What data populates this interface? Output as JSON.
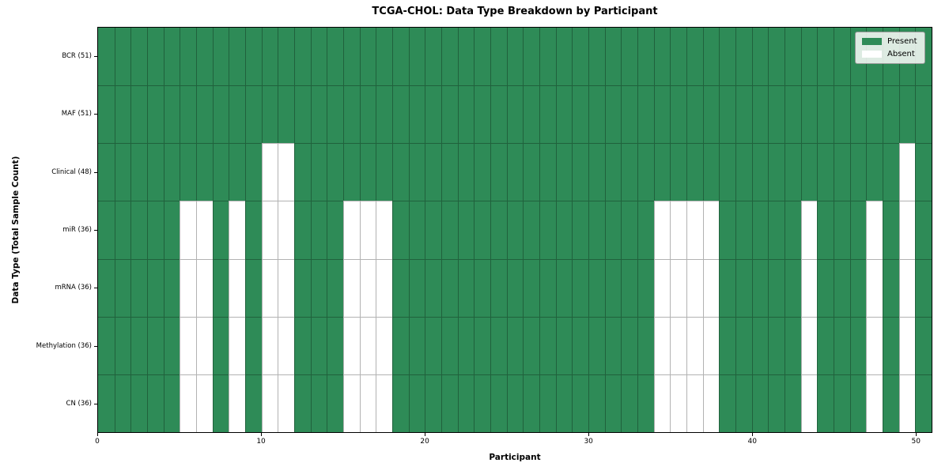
{
  "chart_data": {
    "type": "heatmap",
    "title": "TCGA-CHOL: Data Type Breakdown by Participant",
    "xlabel": "Participant",
    "ylabel": "Data Type (Total Sample Count)",
    "n_participants": 51,
    "x_range": [
      0,
      51
    ],
    "x_ticks": [
      0,
      10,
      20,
      30,
      40,
      50
    ],
    "grid": true,
    "legend_position": "upper right",
    "colors": {
      "present": "#2e8b57",
      "absent": "#ffffff"
    },
    "legend": [
      {
        "label": "Present",
        "color": "#2e8b57"
      },
      {
        "label": "Absent",
        "color": "#ffffff"
      }
    ],
    "rows": [
      {
        "label": "BCR (51)",
        "data_type": "BCR",
        "total": 51,
        "absent_participants": []
      },
      {
        "label": "MAF (51)",
        "data_type": "MAF",
        "total": 51,
        "absent_participants": []
      },
      {
        "label": "Clinical (48)",
        "data_type": "Clinical",
        "total": 48,
        "absent_participants": [
          10,
          11,
          49
        ]
      },
      {
        "label": "miR (36)",
        "data_type": "miR",
        "total": 36,
        "absent_participants": [
          5,
          6,
          8,
          10,
          11,
          15,
          16,
          17,
          34,
          35,
          36,
          37,
          43,
          47,
          49
        ]
      },
      {
        "label": "mRNA (36)",
        "data_type": "mRNA",
        "total": 36,
        "absent_participants": [
          5,
          6,
          8,
          10,
          11,
          15,
          16,
          17,
          34,
          35,
          36,
          37,
          43,
          47,
          49
        ]
      },
      {
        "label": "Methylation (36)",
        "data_type": "Methylation",
        "total": 36,
        "absent_participants": [
          5,
          6,
          8,
          10,
          11,
          15,
          16,
          17,
          34,
          35,
          36,
          37,
          43,
          47,
          49
        ]
      },
      {
        "label": "CN (36)",
        "data_type": "CN",
        "total": 36,
        "absent_participants": [
          5,
          6,
          8,
          10,
          11,
          15,
          16,
          17,
          34,
          35,
          36,
          37,
          43,
          47,
          49
        ]
      }
    ]
  }
}
